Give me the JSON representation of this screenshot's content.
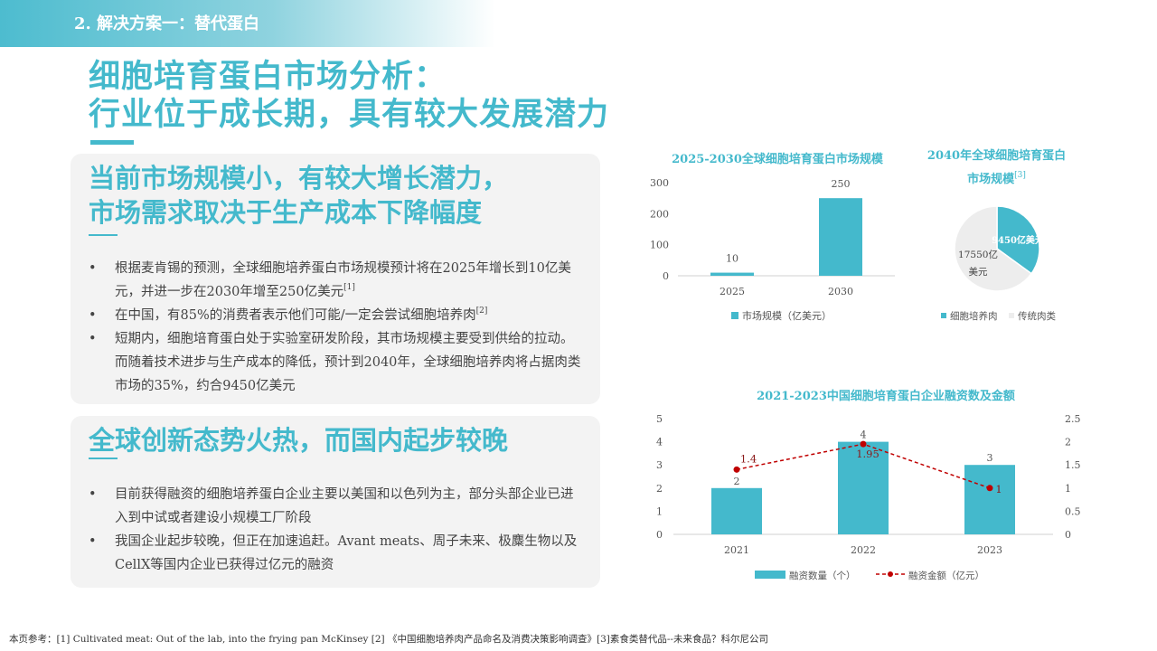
{
  "section_label": "2. 解决方案一：替代蛋白",
  "title": {
    "line1": "细胞培育蛋白市场分析：",
    "line2": "行业位于成长期，具有较大发展潜力"
  },
  "card1": {
    "heading_line1": "当前市场规模小，有较大增长潜力，",
    "heading_line2": "市场需求取决于生产成本下降幅度",
    "bullets": [
      {
        "text": "根据麦肯锡的预测，全球细胞培养蛋白市场规模预计将在2025年增长到10亿美元，并进一步在2030年增至250亿美元",
        "ref": "[1]"
      },
      {
        "text": "在中国，有85%的消费者表示他们可能/一定会尝试细胞培养肉",
        "ref": "[2]"
      },
      {
        "text": "短期内，细胞培育蛋白处于实验室研发阶段，其市场规模主要受到供给的拉动。而随着技术进步与生产成本的降低，预计到2040年，全球细胞培养肉将占据肉类市场的35%，约合9450亿美元",
        "ref": ""
      }
    ]
  },
  "card2": {
    "heading": "全球创新态势火热，而国内起步较晚",
    "bullets": [
      {
        "text": "目前获得融资的细胞培养蛋白企业主要以美国和以色列为主，部分头部企业已进入到中试或者建设小规模工厂阶段",
        "ref": ""
      },
      {
        "text": "我国企业起步较晚，但正在加速追赶。Avant meats、周子未来、极麋生物以及CellX等国内企业已获得过亿元的融资",
        "ref": ""
      }
    ]
  },
  "chart_data": [
    {
      "type": "bar",
      "title": "2025-2030全球细胞培育蛋白市场规模",
      "categories": [
        "2025",
        "2030"
      ],
      "series": [
        {
          "name": "市场规模（亿美元）",
          "values": [
            10,
            250
          ]
        }
      ],
      "ylim": [
        0,
        300
      ],
      "yticks": [
        0,
        100,
        200,
        300
      ],
      "legend": "bottom",
      "color": "#44b9cc"
    },
    {
      "type": "pie",
      "title": "2040年全球细胞培育蛋白",
      "title_line2": "市场规模",
      "title_ref": "[3]",
      "slices": [
        {
          "name": "细胞培养肉",
          "value": 9450,
          "label": "9450亿美元",
          "color": "#44b9cc"
        },
        {
          "name": "传统肉类",
          "value": 17550,
          "label_line1": "17550亿",
          "label_line2": "美元",
          "color": "#ededed"
        }
      ],
      "legend": "bottom"
    },
    {
      "type": "bar+line",
      "title": "2021-2023中国细胞培育蛋白企业融资数及金额",
      "categories": [
        "2021",
        "2022",
        "2023"
      ],
      "series": [
        {
          "name": "融资数量（个）",
          "type": "bar",
          "axis": "left",
          "values": [
            2,
            4,
            3
          ],
          "labels": [
            "2",
            "4",
            "3"
          ],
          "color": "#44b9cc"
        },
        {
          "name": "融资金额（亿元）",
          "type": "line",
          "axis": "right",
          "values": [
            1.4,
            1.95,
            1
          ],
          "labels": [
            "1.4",
            "1.95",
            "1"
          ],
          "color": "#c00000"
        }
      ],
      "ylim_left": [
        0,
        5
      ],
      "yticks_left": [
        "0",
        "1",
        "2",
        "3",
        "4",
        "5"
      ],
      "ylim_right": [
        0,
        2.5
      ],
      "yticks_right": [
        "0",
        "0.5",
        "1",
        "1.5",
        "2",
        "2.5"
      ],
      "legend": "bottom"
    }
  ],
  "footer": "本页参考：[1] Cultivated meat: Out of the lab, into the frying pan McKinsey [2] 《中国细胞培养肉产品命名及消费决策影响调查》[3]素食类替代品--未来食品？科尔尼公司"
}
